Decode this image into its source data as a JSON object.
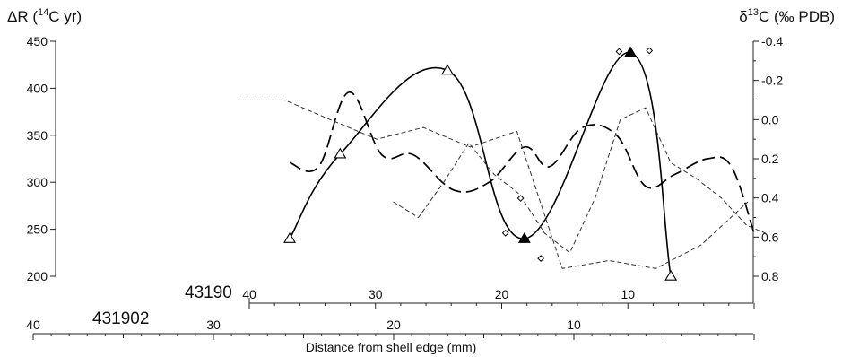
{
  "chart_data": {
    "type": "line",
    "title": "",
    "left_axis": {
      "label_main": "ΔR (",
      "label_sup": "14",
      "label_rest": "C yr)",
      "ylim": [
        200,
        450
      ],
      "ticks": [
        "450",
        "400",
        "350",
        "300",
        "250",
        "200"
      ]
    },
    "right_axis": {
      "label_main": "δ",
      "label_sup": "13",
      "label_rest": "C (‰ PDB)",
      "ylim": [
        -0.4,
        0.8
      ],
      "inverted": true,
      "ticks": [
        "-0.4",
        "-0.2",
        "0.0",
        "0.2",
        "0.4",
        "0.6",
        "0.8"
      ]
    },
    "x_axes": [
      {
        "specimen": "43190",
        "ticks": [
          "40",
          "30",
          "20",
          "10"
        ],
        "range_mm": [
          40,
          0
        ]
      },
      {
        "specimen": "431902",
        "ticks": [
          "40",
          "30",
          "20",
          "10"
        ],
        "range_mm": [
          40,
          0
        ]
      }
    ],
    "xlabel": "Distance from shell edge (mm)",
    "series": [
      {
        "axis": "left",
        "style": "solid",
        "marker": "triangle",
        "x": [
          36.8,
          32.8,
          24.3,
          18.2,
          9.8,
          6.6
        ],
        "y": [
          240,
          330,
          419,
          240,
          438,
          200
        ],
        "filled": [
          false,
          false,
          false,
          true,
          true,
          false
        ]
      },
      {
        "axis": "left",
        "style": "points",
        "marker": "diamond",
        "x": [
          19.7,
          18.5,
          16.9,
          10.7,
          8.3
        ],
        "y": [
          246,
          283,
          219,
          439,
          440
        ]
      },
      {
        "axis": "right",
        "style": "long-dash",
        "x": [
          36.8,
          34.5,
          32.1,
          29.5,
          27.0,
          23.8,
          21.0,
          18.2,
          16.2,
          13.6,
          10.9,
          8.6,
          6.3,
          3.7,
          1.8,
          0.0
        ],
        "y": [
          0.22,
          0.24,
          -0.14,
          0.18,
          0.18,
          0.36,
          0.32,
          0.14,
          0.24,
          0.04,
          0.08,
          0.34,
          0.28,
          0.2,
          0.24,
          0.58
        ]
      },
      {
        "axis": "right",
        "style": "short-dash",
        "x": [
          40.9,
          37.2,
          33.6,
          29.9,
          26.2,
          22.5,
          18.8,
          15.2,
          11.5,
          7.8,
          4.2,
          0.5
        ],
        "y": [
          -0.1,
          -0.1,
          0.0,
          0.1,
          0.04,
          0.14,
          0.06,
          0.76,
          0.72,
          0.76,
          0.64,
          0.42
        ]
      },
      {
        "axis": "right",
        "style": "short-dash",
        "x": [
          28.6,
          26.6,
          24.6,
          22.6,
          20.6,
          18.6,
          16.6,
          14.6,
          12.6,
          10.6,
          8.6,
          6.6,
          4.6,
          2.6,
          0.6,
          -0.9
        ],
        "y": [
          0.42,
          0.5,
          0.32,
          0.12,
          0.28,
          0.38,
          0.58,
          0.68,
          0.4,
          0.0,
          -0.06,
          0.22,
          0.3,
          0.4,
          0.54,
          0.58
        ]
      }
    ]
  }
}
